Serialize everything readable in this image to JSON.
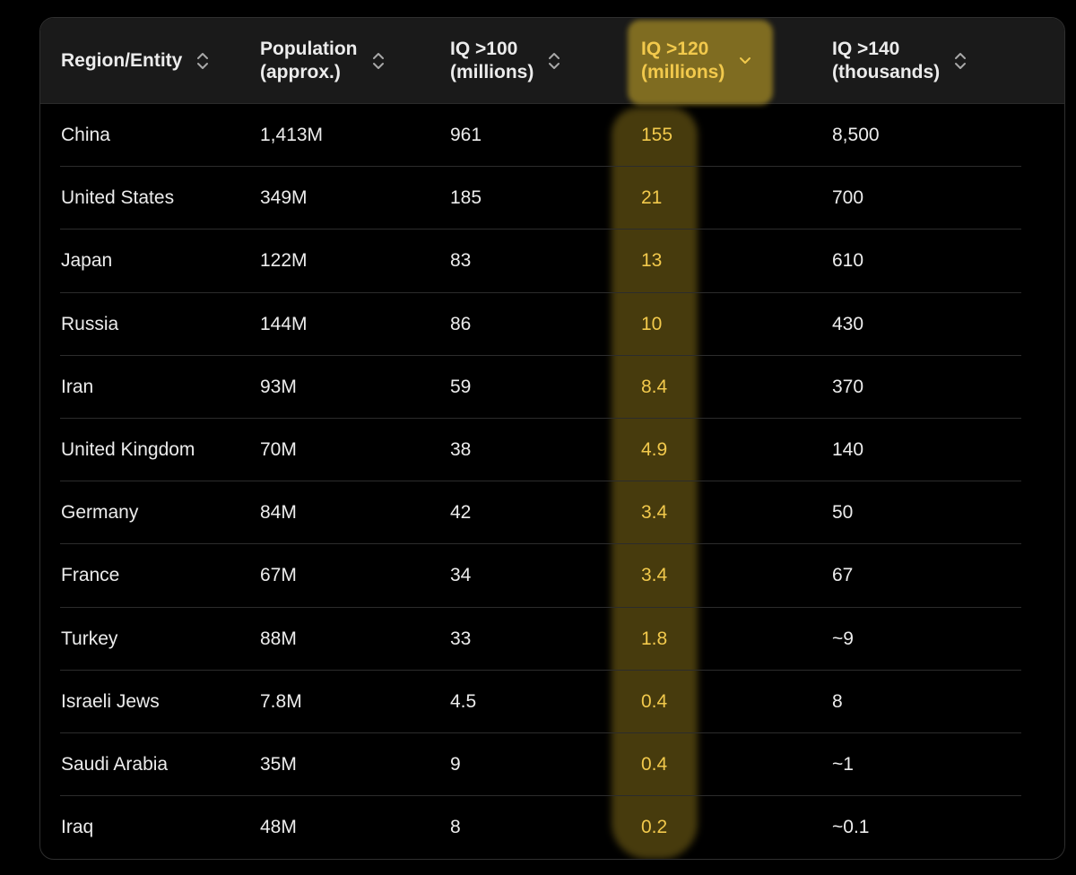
{
  "table": {
    "columns": [
      {
        "line1": "Region/Entity",
        "line2": "",
        "sort": "unsorted",
        "active": false
      },
      {
        "line1": "Population",
        "line2": "(approx.)",
        "sort": "unsorted",
        "active": false
      },
      {
        "line1": "IQ >100",
        "line2": "(millions)",
        "sort": "unsorted",
        "active": false
      },
      {
        "line1": "IQ >120",
        "line2": "(millions)",
        "sort": "descending",
        "active": true
      },
      {
        "line1": "IQ >140",
        "line2": "(thousands)",
        "sort": "unsorted",
        "active": false
      }
    ],
    "rows": [
      [
        "China",
        "1,413M",
        "961",
        "155",
        "8,500"
      ],
      [
        "United States",
        "349M",
        "185",
        "21",
        "700"
      ],
      [
        "Japan",
        "122M",
        "83",
        "13",
        "610"
      ],
      [
        "Russia",
        "144M",
        "86",
        "10",
        "430"
      ],
      [
        "Iran",
        "93M",
        "59",
        "8.4",
        "370"
      ],
      [
        "United Kingdom",
        "70M",
        "38",
        "4.9",
        "140"
      ],
      [
        "Germany",
        "84M",
        "42",
        "3.4",
        "50"
      ],
      [
        "France",
        "67M",
        "34",
        "3.4",
        "67"
      ],
      [
        "Turkey",
        "88M",
        "33",
        "1.8",
        "~9"
      ],
      [
        "Israeli Jews",
        "7.8M",
        "4.5",
        "0.4",
        "8"
      ],
      [
        "Saudi Arabia",
        "35M",
        "9",
        "0.4",
        "~1"
      ],
      [
        "Iraq",
        "48M",
        "8",
        "0.2",
        "~0.1"
      ]
    ]
  },
  "colors": {
    "background": "#000000",
    "header_bg": "#1a1a1a",
    "text": "#ececec",
    "accent": "#f2c94c",
    "highlighter": "#d4b028"
  },
  "icons": {
    "unsorted": "chevron-up-down-icon",
    "descending": "chevron-down-icon"
  }
}
